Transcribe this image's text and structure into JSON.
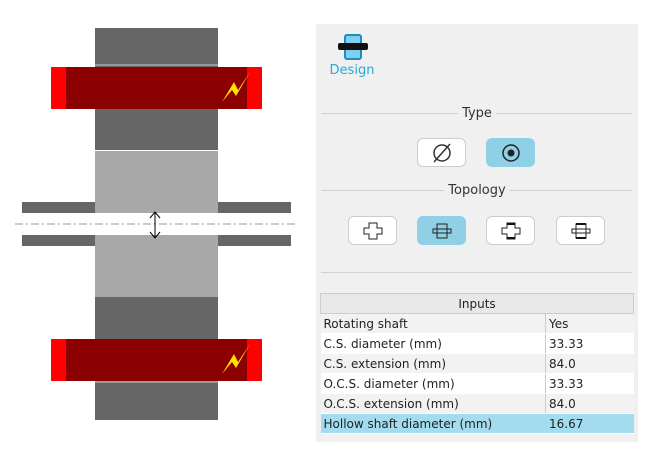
{
  "toolbar": {
    "design_label": "Design",
    "design_icon": "machine-design-icon"
  },
  "type": {
    "title": "Type",
    "options": [
      {
        "icon": "solid-shaft-icon",
        "selected": false
      },
      {
        "icon": "hollow-shaft-icon",
        "selected": true
      }
    ]
  },
  "topology": {
    "title": "Topology",
    "options": [
      {
        "icon": "topology-1-icon",
        "selected": false
      },
      {
        "icon": "topology-2-icon",
        "selected": true
      },
      {
        "icon": "topology-3-icon",
        "selected": false
      },
      {
        "icon": "topology-4-icon",
        "selected": false
      }
    ]
  },
  "inputs": {
    "header": "Inputs",
    "rows": [
      {
        "label": "Rotating shaft",
        "value": "Yes"
      },
      {
        "label": "C.S. diameter (mm)",
        "value": "33.33"
      },
      {
        "label": "C.S. extension (mm)",
        "value": "84.0"
      },
      {
        "label": "O.C.S. diameter (mm)",
        "value": "33.33"
      },
      {
        "label": "O.C.S. extension (mm)",
        "value": "84.0"
      },
      {
        "label": "Hollow shaft diameter (mm)",
        "value": "16.67",
        "selected": true
      }
    ]
  },
  "colors": {
    "accent": "#2aa8d8",
    "selected": "#8fd0e6",
    "winding": "#8b0000",
    "winding_end": "#ff0000",
    "iron": "#666666",
    "magnet": "#a8a8a8"
  }
}
